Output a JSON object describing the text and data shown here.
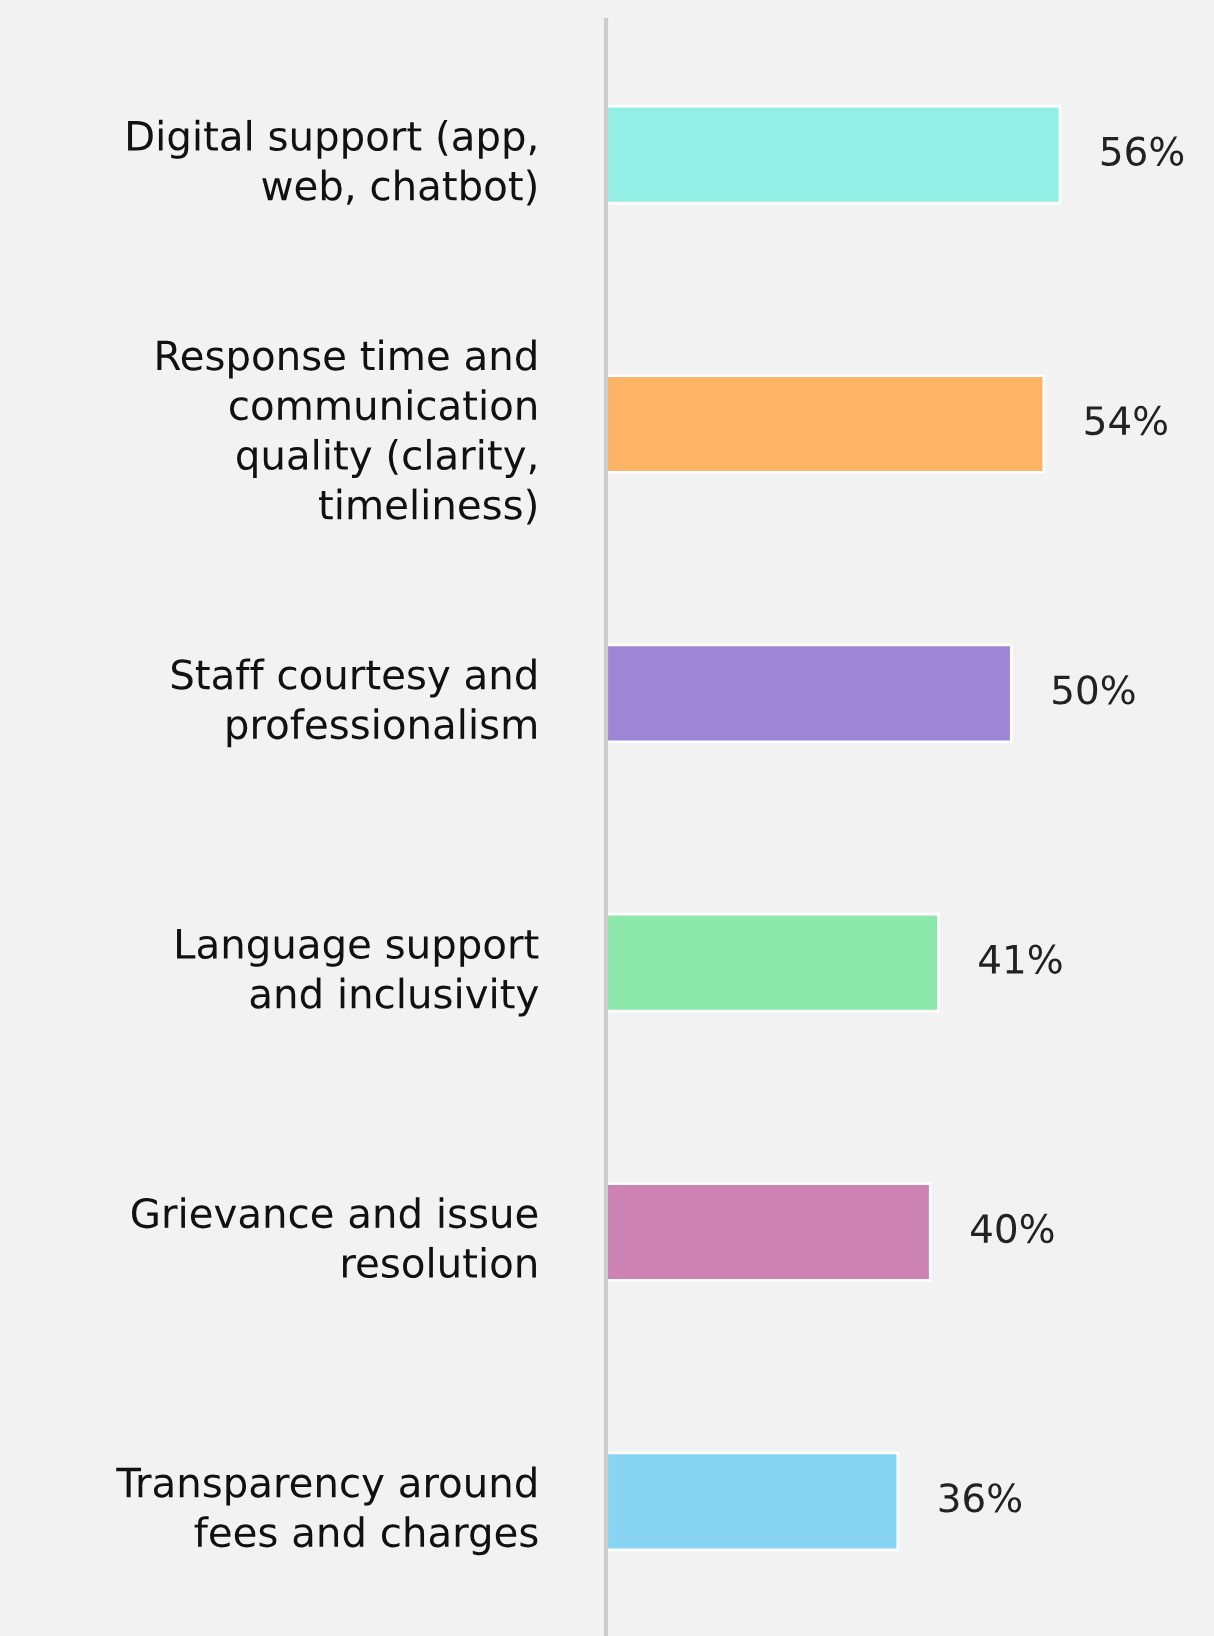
{
  "chart_data": {
    "type": "bar",
    "orientation": "horizontal",
    "categories": [
      "Digital support (app,\nweb, chatbot)",
      "Response time and\ncommunication\nquality (clarity,\ntimeliness)",
      "Staff courtesy and\nprofessionalism",
      "Language support\nand inclusivity",
      "Grievance and issue\nresolution",
      "Transparency around\nfees and charges"
    ],
    "values": [
      56,
      54,
      50,
      41,
      40,
      36
    ],
    "colors": [
      "#93efe6",
      "#ffb366",
      "#9e86d6",
      "#8de8ab",
      "#cc82b2",
      "#87d4f2"
    ],
    "value_labels": [
      "56%",
      "54%",
      "50%",
      "41%",
      "40%",
      "36%"
    ],
    "xlim": [
      0,
      75
    ],
    "tick_labels": "y",
    "grid": false,
    "legend": false
  }
}
